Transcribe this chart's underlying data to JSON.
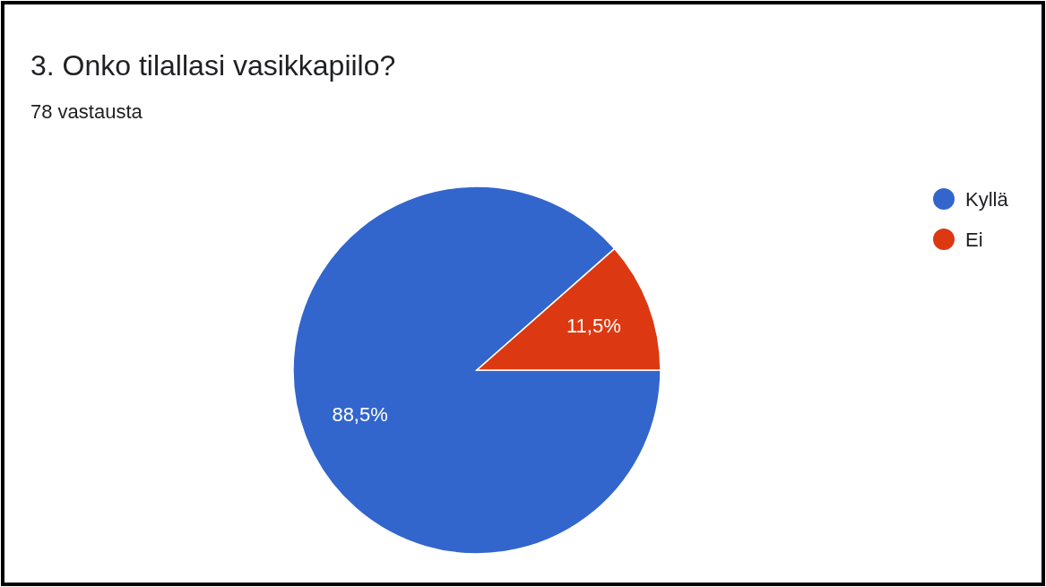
{
  "chart_data": {
    "type": "pie",
    "title": "3. Onko tilallasi vasikkapiilo?",
    "subtitle": "78 vastausta",
    "categories": [
      "Kyllä",
      "Ei"
    ],
    "values": [
      88.5,
      11.5
    ],
    "colors": [
      "#3366cc",
      "#dc3912"
    ],
    "value_labels": [
      "88,5%",
      "11,5%"
    ],
    "legend": "right"
  }
}
